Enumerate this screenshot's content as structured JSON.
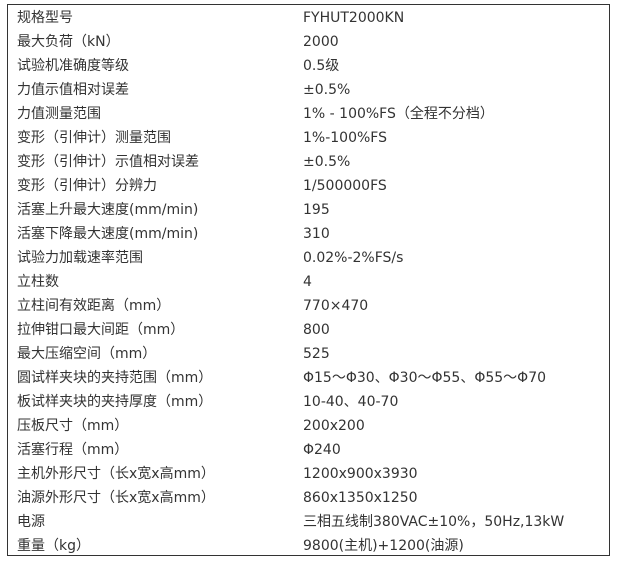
{
  "rows": [
    [
      "规格型号",
      "FYHUT2000KN"
    ],
    [
      "最大负荷（kN）",
      "2000"
    ],
    [
      "试验机准确度等级",
      "0.5级"
    ],
    [
      "力值示值相对误差",
      "±0.5%"
    ],
    [
      "力值测量范围",
      "1% - 100%FS（全程不分档）"
    ],
    [
      "变形（引伸计）测量范围",
      "1%-100%FS"
    ],
    [
      "变形（引伸计）示值相对误差",
      "±0.5%"
    ],
    [
      "变形（引伸计）分辨力",
      "1/500000FS"
    ],
    [
      "活塞上升最大速度(mm/min)",
      "195"
    ],
    [
      "活塞下降最大速度(mm/min)",
      "310"
    ],
    [
      "试验力加载速率范围",
      "0.02%-2%FS/s"
    ],
    [
      "立柱数",
      "4"
    ],
    [
      "立柱间有效距离（mm）",
      "770×470"
    ],
    [
      "拉伸钳口最大间距（mm）",
      "800"
    ],
    [
      "最大压缩空间（mm）",
      "525"
    ],
    [
      "圆试样夹块的夹持范围（mm）",
      "Φ15～Φ30、Φ30～Φ55、Φ55～Φ70"
    ],
    [
      "板试样夹块的夹持厚度（mm）",
      "10-40、40-70"
    ],
    [
      "压板尺寸（mm）",
      "200x200"
    ],
    [
      "活塞行程（mm）",
      "Φ240"
    ],
    [
      "主机外形尺寸（长x宽x高mm）",
      "1200x900x3930"
    ],
    [
      "油源外形尺寸（长x宽x高mm）",
      "860x1350x1250"
    ],
    [
      "电源",
      "三相五线制380VAC±10%，50Hz,13kW"
    ],
    [
      "重量（kg）",
      "9800(主机)+1200(油源)"
    ]
  ]
}
